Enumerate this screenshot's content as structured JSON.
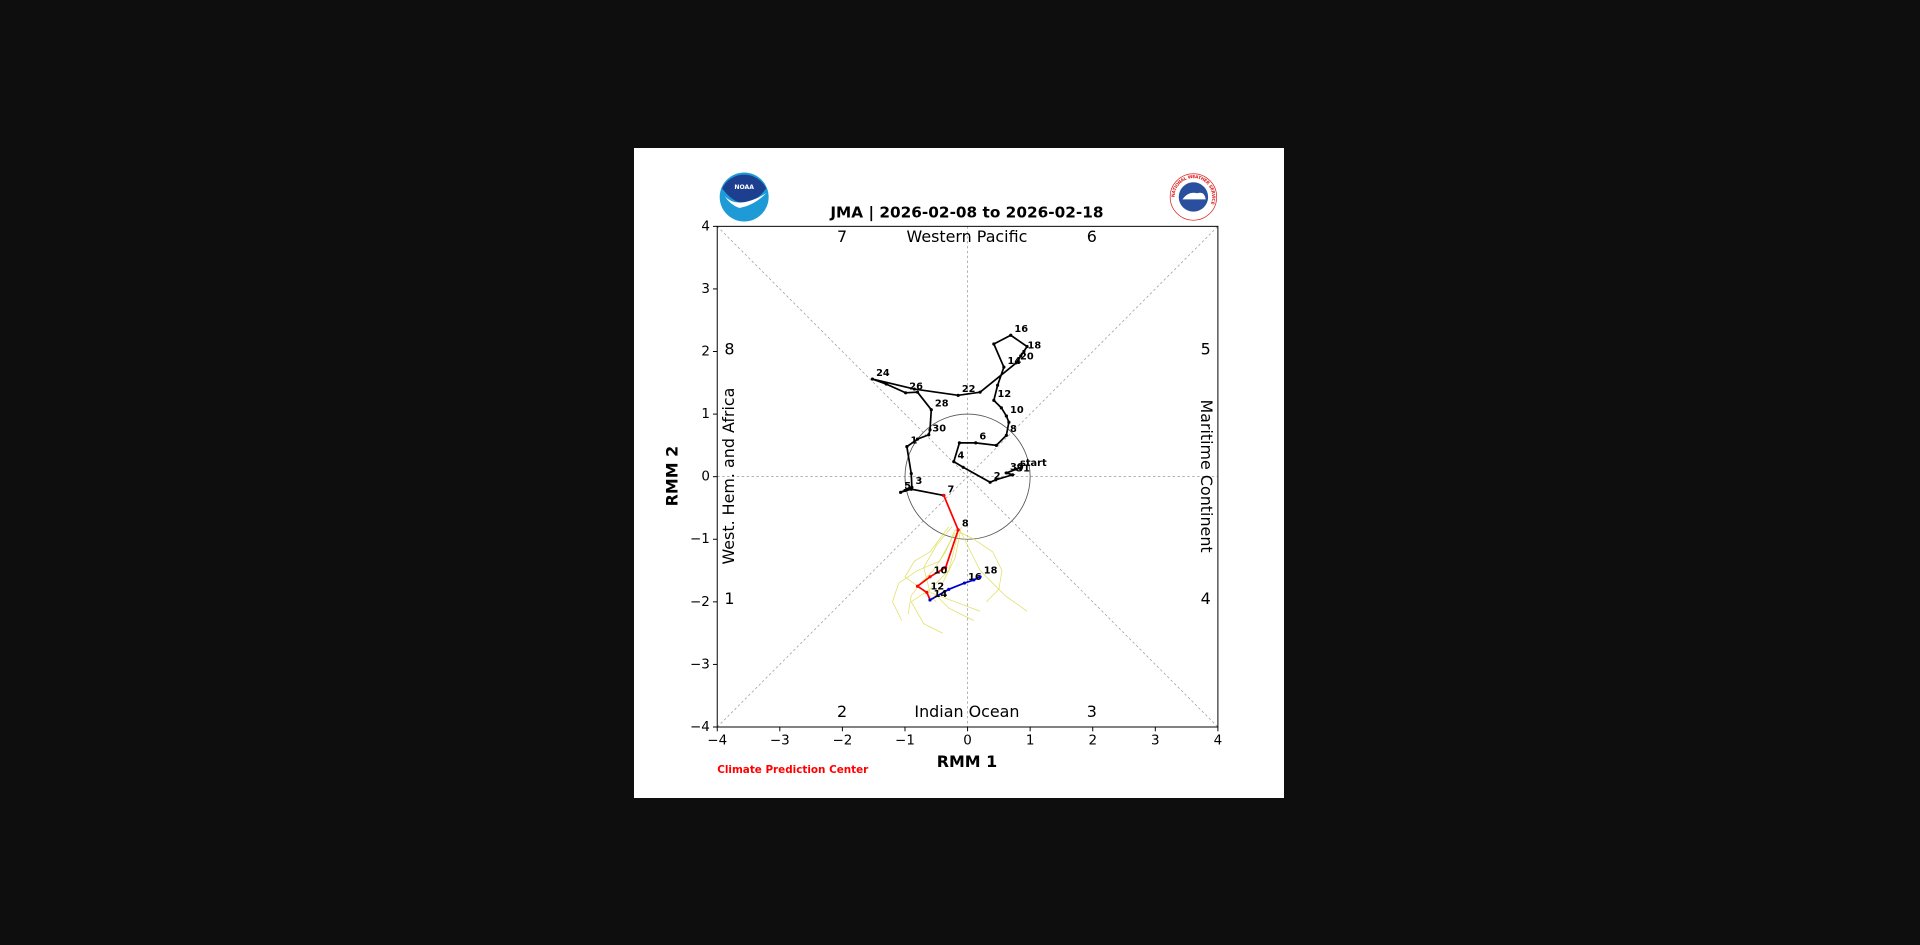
{
  "chart_data": {
    "type": "line",
    "title": "JMA | 2026-02-08 to 2026-02-18",
    "xlabel": "RMM 1",
    "ylabel": "RMM 2",
    "credit": "Climate Prediction Center",
    "logo_left": "NOAA",
    "logo_right": "NATIONAL WEATHER SERVICE",
    "regions": {
      "top": "Western Pacific",
      "bottom": "Indian Ocean",
      "left": "West. Hem. and Africa",
      "right": "Maritime Continent"
    },
    "phase_labels": [
      1,
      2,
      3,
      4,
      5,
      6,
      7,
      8
    ],
    "xlim": [
      -4,
      4
    ],
    "ylim": [
      -4,
      4
    ],
    "xticks": [
      {
        "value": -4,
        "label": "−4"
      },
      {
        "value": -3,
        "label": "−3"
      },
      {
        "value": -2,
        "label": "−2"
      },
      {
        "value": -1,
        "label": "−1"
      },
      0,
      1,
      2,
      3,
      4
    ],
    "yticks": [
      {
        "value": -4,
        "label": "−4"
      },
      {
        "value": -3,
        "label": "−3"
      },
      {
        "value": -2,
        "label": "−2"
      },
      {
        "value": -1,
        "label": "−1"
      },
      0,
      1,
      2,
      3,
      4
    ],
    "ensemble": {
      "color": "#d8d83a",
      "lines": [
        {
          "x": [
            -0.2,
            -0.35,
            -0.55,
            -0.75,
            -0.9,
            -0.95
          ],
          "values": [
            -0.85,
            -1.2,
            -1.5,
            -1.7,
            -1.9,
            -2.2
          ]
        },
        {
          "x": [
            -0.1,
            -0.2,
            -0.35,
            -0.5,
            -0.3,
            0.1
          ],
          "values": [
            -0.8,
            -1.3,
            -1.6,
            -1.9,
            -2.1,
            -2.3
          ]
        },
        {
          "x": [
            -0.2,
            -0.45,
            -0.8,
            -1.1,
            -1.2,
            -1.05
          ],
          "values": [
            -0.9,
            -1.35,
            -1.5,
            -1.7,
            -2.0,
            -2.3
          ]
        },
        {
          "x": [
            -0.1,
            0.05,
            0.2,
            0.4,
            0.6,
            0.95
          ],
          "values": [
            -0.9,
            -1.2,
            -1.5,
            -1.7,
            -1.9,
            -2.15
          ]
        },
        {
          "x": [
            -0.25,
            -0.5,
            -0.7,
            -0.6,
            -0.2,
            0.2
          ],
          "values": [
            -0.8,
            -1.1,
            -1.45,
            -1.85,
            -2.0,
            -2.15
          ]
        },
        {
          "x": [
            -0.15,
            -0.3,
            -0.6,
            -0.9,
            -0.7,
            -0.4
          ],
          "values": [
            -0.9,
            -1.5,
            -1.8,
            -2.0,
            -2.35,
            -2.5
          ]
        },
        {
          "x": [
            -0.2,
            0.1,
            0.4,
            0.55,
            0.5,
            0.3
          ],
          "values": [
            -0.85,
            -1.0,
            -1.2,
            -1.5,
            -1.8,
            -2.0
          ]
        },
        {
          "x": [
            -0.3,
            -0.6,
            -0.85,
            -1.0,
            -0.8,
            -0.5
          ],
          "values": [
            -0.8,
            -1.2,
            -1.35,
            -1.6,
            -1.75,
            -2.0
          ]
        }
      ]
    },
    "series": [
      {
        "color": "#000000",
        "x": [
          0.78,
          0.62,
          0.72,
          0.45,
          0.36,
          -0.07,
          -0.22,
          -0.13,
          0.13,
          0.46,
          0.62,
          0.66,
          0.62,
          0.54,
          0.42,
          0.48,
          0.58,
          0.42,
          0.69,
          0.95,
          0.9,
          0.85,
          0.78,
          0.2,
          -0.15,
          -0.85,
          -1.52,
          -1.3,
          -0.99,
          -0.8,
          -0.58,
          -0.6,
          -0.62,
          -0.8,
          -0.97,
          -0.9,
          -0.89,
          -1.0,
          -1.07,
          -0.9,
          -0.38
        ],
        "values": [
          0.12,
          0.06,
          0.03,
          -0.05,
          -0.09,
          0.15,
          0.24,
          0.54,
          0.54,
          0.5,
          0.66,
          0.87,
          0.97,
          1.1,
          1.22,
          1.46,
          1.75,
          2.12,
          2.26,
          2.08,
          2.0,
          1.93,
          1.82,
          1.35,
          1.3,
          1.4,
          1.56,
          1.48,
          1.34,
          1.35,
          1.07,
          0.75,
          0.67,
          0.6,
          0.48,
          0.05,
          -0.17,
          -0.22,
          -0.25,
          -0.2,
          -0.3
        ],
        "point_labels": [
          "start",
          "30",
          "31",
          null,
          "2",
          null,
          "4",
          null,
          "6",
          null,
          "8",
          null,
          "10",
          null,
          "12",
          null,
          "14",
          null,
          "16",
          null,
          "18",
          null,
          "20",
          null,
          "22",
          null,
          "24",
          null,
          "26",
          null,
          "28",
          null,
          "30",
          null,
          "1",
          null,
          "3",
          null,
          "5",
          null,
          "7"
        ]
      },
      {
        "color": "#ff0000",
        "x": [
          -0.38,
          -0.15,
          -0.35,
          -0.6,
          -0.8,
          -0.65,
          -0.6
        ],
        "values": [
          -0.3,
          -0.85,
          -1.45,
          -1.6,
          -1.75,
          -1.85,
          -1.97
        ],
        "point_labels": [
          null,
          "8",
          null,
          "10",
          null,
          "12",
          null
        ]
      },
      {
        "color": "#0000cc",
        "x": [
          -0.6,
          -0.3,
          -0.05,
          0.1,
          0.2
        ],
        "values": [
          -1.97,
          -1.8,
          -1.7,
          -1.65,
          -1.6
        ],
        "point_labels": [
          "14",
          null,
          "16",
          null,
          "18"
        ]
      }
    ]
  }
}
